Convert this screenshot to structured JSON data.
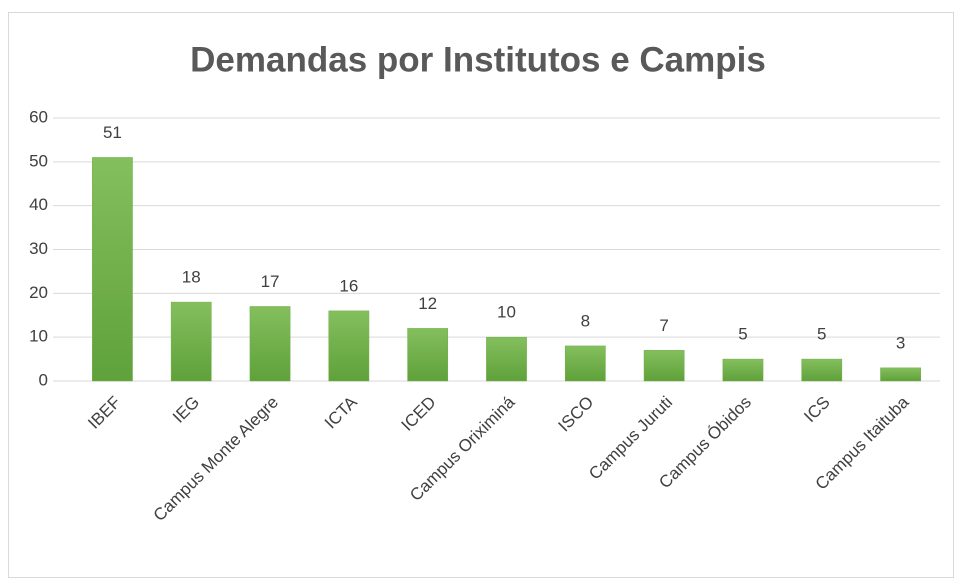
{
  "chart_data": {
    "type": "bar",
    "title": "Demandas por Institutos e Campis",
    "categories": [
      "IBEF",
      "IEG",
      "Campus Monte Alegre",
      "ICTA",
      "ICED",
      "Campus Oriximiná",
      "ISCO",
      "Campus Juruti",
      "Campus Óbidos",
      "ICS",
      "Campus Itaituba"
    ],
    "values": [
      51,
      18,
      17,
      16,
      12,
      10,
      8,
      7,
      5,
      5,
      3
    ],
    "color": "#70ad47",
    "ylim": [
      0,
      60
    ],
    "yticks": [
      0,
      10,
      20,
      30,
      40,
      50,
      60
    ],
    "grid": true
  }
}
